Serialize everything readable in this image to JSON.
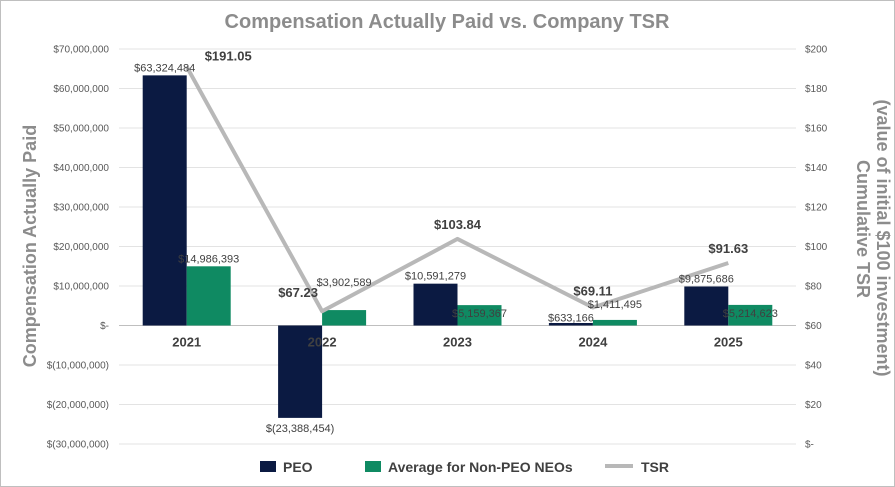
{
  "chart_data": {
    "type": "bar",
    "title": "Compensation Actually Paid vs. Company TSR",
    "ylabel": "Compensation Actually Paid",
    "y2label_line1": "Cumulative TSR",
    "y2label_line2": "(value of initial $100 investment)",
    "categories": [
      "2021",
      "2022",
      "2023",
      "2024",
      "2025"
    ],
    "ylim": [
      -30000000,
      70000000
    ],
    "y2lim": [
      0,
      200
    ],
    "y_ticks": [
      {
        "value": 70000000,
        "label": "$70,000,000"
      },
      {
        "value": 60000000,
        "label": "$60,000,000"
      },
      {
        "value": 50000000,
        "label": "$50,000,000"
      },
      {
        "value": 40000000,
        "label": "$40,000,000"
      },
      {
        "value": 30000000,
        "label": "$30,000,000"
      },
      {
        "value": 20000000,
        "label": "$20,000,000"
      },
      {
        "value": 10000000,
        "label": "$10,000,000"
      },
      {
        "value": 0,
        "label": "$-"
      },
      {
        "value": -10000000,
        "label": "$(10,000,000)"
      },
      {
        "value": -20000000,
        "label": "$(20,000,000)"
      },
      {
        "value": -30000000,
        "label": "$(30,000,000)"
      }
    ],
    "y2_ticks": [
      {
        "value": 200,
        "label": "$200"
      },
      {
        "value": 180,
        "label": "$180"
      },
      {
        "value": 160,
        "label": "$160"
      },
      {
        "value": 140,
        "label": "$140"
      },
      {
        "value": 120,
        "label": "$120"
      },
      {
        "value": 100,
        "label": "$100"
      },
      {
        "value": 80,
        "label": "$80"
      },
      {
        "value": 60,
        "label": "$60"
      },
      {
        "value": 40,
        "label": "$40"
      },
      {
        "value": 20,
        "label": "$20"
      },
      {
        "value": 0,
        "label": "$-"
      }
    ],
    "grid": true,
    "legend_position": "bottom",
    "series": [
      {
        "name": "PEO",
        "type": "bar",
        "axis": "left",
        "color": "#0b1a42",
        "values": [
          63324484,
          -23388454,
          10591279,
          633166,
          9875686
        ],
        "labels": [
          "$63,324,484",
          "$(23,388,454)",
          "$10,591,279",
          "$633,166",
          "$9,875,686"
        ]
      },
      {
        "name": "Average for Non-PEO NEOs",
        "type": "bar",
        "axis": "left",
        "color": "#0f8a62",
        "values": [
          14986393,
          3902589,
          5159367,
          1411495,
          5214623
        ],
        "labels": [
          "$14,986,393",
          "$3,902,589",
          "$5,159,367",
          "$1,411,495",
          "$5,214,623"
        ]
      },
      {
        "name": "TSR",
        "type": "line",
        "axis": "right",
        "color": "#b8b8b8",
        "values": [
          191.05,
          67.23,
          103.84,
          69.11,
          91.63
        ],
        "labels": [
          "$191.05",
          "$67.23",
          "$103.84",
          "$69.11",
          "$91.63"
        ]
      }
    ]
  }
}
